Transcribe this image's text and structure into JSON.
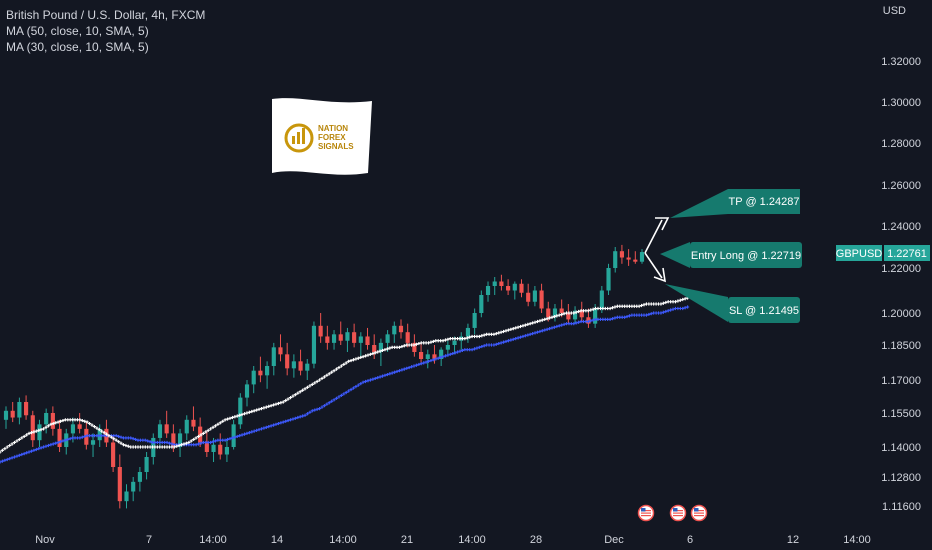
{
  "header": {
    "title": "British Pound / U.S. Dollar, 4h, FXCM",
    "indicators": [
      "MA (50, close, 10, SMA, 5)",
      "MA (30, close, 10, SMA, 5)"
    ],
    "currency": "USD"
  },
  "logo": {
    "line1": "NATION",
    "line2": "FOREX",
    "line3": "SIGNALS"
  },
  "colors": {
    "background": "#131722",
    "up": "#26a69a",
    "down": "#ef5350",
    "ma50": "#3d5afe",
    "ma30": "#ffffff",
    "callout": "#167a6e",
    "price_tag": "#26a69a"
  },
  "chart_data": {
    "type": "candlestick",
    "symbol": "GBPUSD",
    "last_price": "1.22761",
    "y_ticks": [
      "1.32000",
      "1.30000",
      "1.28000",
      "1.26000",
      "1.24000",
      "1.22000",
      "1.20000",
      "1.18500",
      "1.17000",
      "1.15500",
      "1.14000",
      "1.12800",
      "1.11600"
    ],
    "x_ticks": [
      "Nov",
      "7",
      "14:00",
      "14",
      "14:00",
      "21",
      "14:00",
      "28",
      "Dec",
      "6",
      "12",
      "14:00"
    ],
    "annotations": {
      "tp": "TP @ 1.24287",
      "entry": "Entry Long @ 1.22719",
      "sl": "SL @ 1.21495"
    },
    "candles": [
      [
        1.152,
        1.158,
        1.148,
        1.156
      ],
      [
        1.156,
        1.16,
        1.151,
        1.153
      ],
      [
        1.153,
        1.162,
        1.15,
        1.16
      ],
      [
        1.16,
        1.163,
        1.152,
        1.154
      ],
      [
        1.154,
        1.156,
        1.14,
        1.143
      ],
      [
        1.143,
        1.152,
        1.14,
        1.15
      ],
      [
        1.15,
        1.157,
        1.146,
        1.155
      ],
      [
        1.155,
        1.158,
        1.145,
        1.148
      ],
      [
        1.148,
        1.152,
        1.138,
        1.14
      ],
      [
        1.14,
        1.148,
        1.137,
        1.146
      ],
      [
        1.146,
        1.153,
        1.142,
        1.15
      ],
      [
        1.15,
        1.155,
        1.146,
        1.148
      ],
      [
        1.148,
        1.151,
        1.139,
        1.141
      ],
      [
        1.141,
        1.146,
        1.136,
        1.143
      ],
      [
        1.143,
        1.15,
        1.14,
        1.148
      ],
      [
        1.148,
        1.152,
        1.14,
        1.142
      ],
      [
        1.142,
        1.145,
        1.13,
        1.132
      ],
      [
        1.132,
        1.137,
        1.115,
        1.118
      ],
      [
        1.118,
        1.125,
        1.115,
        1.122
      ],
      [
        1.122,
        1.128,
        1.118,
        1.126
      ],
      [
        1.126,
        1.132,
        1.122,
        1.13
      ],
      [
        1.13,
        1.138,
        1.127,
        1.136
      ],
      [
        1.136,
        1.146,
        1.133,
        1.144
      ],
      [
        1.144,
        1.152,
        1.14,
        1.15
      ],
      [
        1.15,
        1.156,
        1.144,
        1.146
      ],
      [
        1.146,
        1.15,
        1.138,
        1.14
      ],
      [
        1.14,
        1.148,
        1.136,
        1.146
      ],
      [
        1.146,
        1.154,
        1.143,
        1.152
      ],
      [
        1.152,
        1.158,
        1.147,
        1.149
      ],
      [
        1.149,
        1.153,
        1.14,
        1.142
      ],
      [
        1.142,
        1.147,
        1.136,
        1.138
      ],
      [
        1.138,
        1.144,
        1.134,
        1.141
      ],
      [
        1.141,
        1.146,
        1.135,
        1.137
      ],
      [
        1.137,
        1.143,
        1.134,
        1.14
      ],
      [
        1.14,
        1.152,
        1.139,
        1.15
      ],
      [
        1.15,
        1.164,
        1.148,
        1.162
      ],
      [
        1.162,
        1.17,
        1.158,
        1.168
      ],
      [
        1.168,
        1.176,
        1.164,
        1.174
      ],
      [
        1.174,
        1.18,
        1.169,
        1.172
      ],
      [
        1.172,
        1.178,
        1.166,
        1.176
      ],
      [
        1.176,
        1.186,
        1.172,
        1.184
      ],
      [
        1.184,
        1.19,
        1.178,
        1.181
      ],
      [
        1.181,
        1.186,
        1.172,
        1.175
      ],
      [
        1.175,
        1.181,
        1.171,
        1.178
      ],
      [
        1.178,
        1.183,
        1.172,
        1.174
      ],
      [
        1.174,
        1.179,
        1.17,
        1.177
      ],
      [
        1.177,
        1.196,
        1.175,
        1.194
      ],
      [
        1.194,
        1.2,
        1.186,
        1.189
      ],
      [
        1.189,
        1.194,
        1.183,
        1.186
      ],
      [
        1.186,
        1.192,
        1.183,
        1.19
      ],
      [
        1.19,
        1.196,
        1.185,
        1.187
      ],
      [
        1.187,
        1.193,
        1.182,
        1.191
      ],
      [
        1.191,
        1.195,
        1.184,
        1.186
      ],
      [
        1.186,
        1.191,
        1.18,
        1.189
      ],
      [
        1.189,
        1.193,
        1.183,
        1.185
      ],
      [
        1.185,
        1.19,
        1.179,
        1.182
      ],
      [
        1.182,
        1.188,
        1.176,
        1.186
      ],
      [
        1.186,
        1.192,
        1.182,
        1.19
      ],
      [
        1.19,
        1.196,
        1.186,
        1.194
      ],
      [
        1.194,
        1.197,
        1.188,
        1.191
      ],
      [
        1.191,
        1.195,
        1.184,
        1.186
      ],
      [
        1.186,
        1.19,
        1.18,
        1.182
      ],
      [
        1.182,
        1.186,
        1.177,
        1.179
      ],
      [
        1.179,
        1.183,
        1.175,
        1.181
      ],
      [
        1.181,
        1.185,
        1.177,
        1.179
      ],
      [
        1.179,
        1.184,
        1.176,
        1.183
      ],
      [
        1.183,
        1.187,
        1.18,
        1.185
      ],
      [
        1.185,
        1.189,
        1.181,
        1.187
      ],
      [
        1.187,
        1.191,
        1.183,
        1.189
      ],
      [
        1.189,
        1.195,
        1.186,
        1.193
      ],
      [
        1.193,
        1.202,
        1.19,
        1.2
      ],
      [
        1.2,
        1.21,
        1.198,
        1.208
      ],
      [
        1.208,
        1.214,
        1.205,
        1.212
      ],
      [
        1.212,
        1.216,
        1.208,
        1.214
      ],
      [
        1.214,
        1.217,
        1.21,
        1.212
      ],
      [
        1.212,
        1.215,
        1.208,
        1.21
      ],
      [
        1.21,
        1.214,
        1.206,
        1.213
      ],
      [
        1.213,
        1.215,
        1.207,
        1.209
      ],
      [
        1.209,
        1.213,
        1.203,
        1.205
      ],
      [
        1.205,
        1.212,
        1.203,
        1.21
      ],
      [
        1.21,
        1.213,
        1.2,
        1.202
      ],
      [
        1.202,
        1.205,
        1.196,
        1.198
      ],
      [
        1.198,
        1.204,
        1.196,
        1.202
      ],
      [
        1.202,
        1.206,
        1.198,
        1.2
      ],
      [
        1.2,
        1.204,
        1.195,
        1.197
      ],
      [
        1.197,
        1.203,
        1.195,
        1.201
      ],
      [
        1.201,
        1.205,
        1.196,
        1.198
      ],
      [
        1.198,
        1.202,
        1.193,
        1.195
      ],
      [
        1.195,
        1.204,
        1.193,
        1.202
      ],
      [
        1.202,
        1.212,
        1.2,
        1.21
      ],
      [
        1.21,
        1.222,
        1.208,
        1.22
      ],
      [
        1.22,
        1.23,
        1.218,
        1.228
      ],
      [
        1.228,
        1.231,
        1.222,
        1.225
      ],
      [
        1.225,
        1.229,
        1.221,
        1.224
      ],
      [
        1.224,
        1.228,
        1.222,
        1.223
      ],
      [
        1.223,
        1.229,
        1.222,
        1.2276
      ]
    ],
    "ma30": [
      1.138,
      1.14,
      1.142,
      1.144,
      1.146,
      1.147,
      1.148,
      1.15,
      1.151,
      1.152,
      1.152,
      1.152,
      1.151,
      1.149,
      1.147,
      1.145,
      1.143,
      1.141,
      1.14,
      1.14,
      1.14,
      1.14,
      1.14,
      1.14,
      1.14,
      1.141,
      1.142,
      1.144,
      1.146,
      1.148,
      1.15,
      1.152,
      1.153,
      1.154,
      1.155,
      1.156,
      1.157,
      1.158,
      1.159,
      1.16,
      1.162,
      1.164,
      1.166,
      1.168,
      1.17,
      1.172,
      1.174,
      1.176,
      1.178,
      1.179,
      1.18,
      1.181,
      1.182,
      1.183,
      1.184,
      1.184,
      1.185,
      1.185,
      1.186,
      1.186,
      1.187,
      1.187,
      1.188,
      1.188,
      1.188,
      1.189,
      1.189,
      1.19,
      1.19,
      1.191,
      1.192,
      1.193,
      1.194,
      1.195,
      1.196,
      1.197,
      1.198,
      1.199,
      1.2,
      1.2,
      1.201,
      1.201,
      1.202,
      1.202,
      1.202,
      1.203,
      1.203,
      1.203,
      1.203,
      1.204,
      1.204,
      1.204,
      1.205,
      1.205,
      1.206,
      1.207
    ],
    "ma50": [
      1.134,
      1.135,
      1.136,
      1.137,
      1.138,
      1.139,
      1.14,
      1.141,
      1.142,
      1.143,
      1.144,
      1.144,
      1.145,
      1.145,
      1.145,
      1.145,
      1.145,
      1.144,
      1.144,
      1.143,
      1.143,
      1.142,
      1.142,
      1.142,
      1.141,
      1.141,
      1.141,
      1.141,
      1.142,
      1.142,
      1.143,
      1.143,
      1.144,
      1.145,
      1.146,
      1.147,
      1.148,
      1.149,
      1.15,
      1.151,
      1.152,
      1.153,
      1.154,
      1.156,
      1.157,
      1.159,
      1.161,
      1.163,
      1.165,
      1.167,
      1.169,
      1.17,
      1.171,
      1.172,
      1.173,
      1.174,
      1.175,
      1.176,
      1.177,
      1.178,
      1.179,
      1.18,
      1.181,
      1.182,
      1.183,
      1.183,
      1.184,
      1.185,
      1.185,
      1.186,
      1.187,
      1.188,
      1.189,
      1.19,
      1.191,
      1.192,
      1.193,
      1.194,
      1.195,
      1.195,
      1.196,
      1.196,
      1.197,
      1.197,
      1.197,
      1.198,
      1.198,
      1.199,
      1.199,
      1.199,
      1.2,
      1.2,
      1.201,
      1.202,
      1.202,
      1.203
    ]
  }
}
